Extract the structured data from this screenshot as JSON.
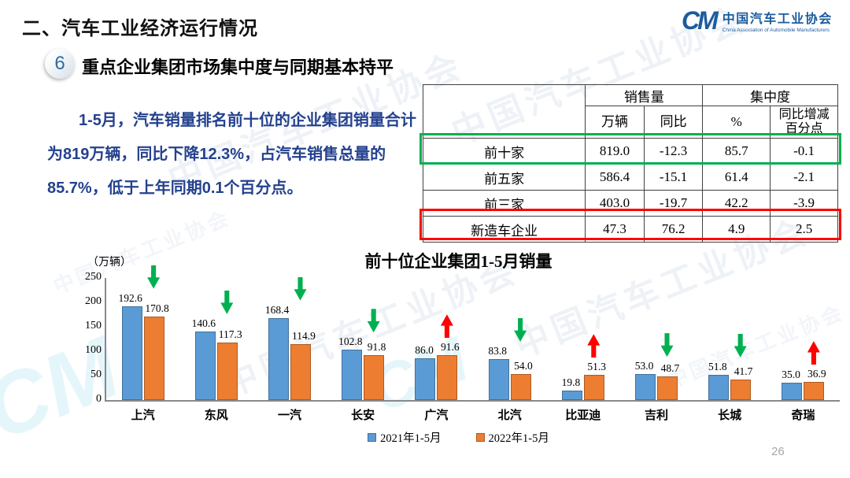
{
  "slide": {
    "section_title": "二、汽车工业经济运行情况",
    "page_number": "26"
  },
  "logo": {
    "monogram": "CM",
    "name_cn": "中国汽车工业协会",
    "name_en": "China Association of Automobile Manufacturers"
  },
  "heading": {
    "badge": "6",
    "text": "重点企业集团市场集中度与同期基本持平"
  },
  "paragraph": {
    "text": "1-5月，汽车销量排名前十位的企业集团销量合计为819万辆，同比下降12.3%，占汽车销售总量的85.7%，低于上年同期0.1个百分点。"
  },
  "table": {
    "group_headers": [
      {
        "label": "销售量",
        "span": 2
      },
      {
        "label": "集中度",
        "span": 2
      }
    ],
    "sub_headers": [
      "万辆",
      "同比",
      "%",
      "同比增减百分点"
    ],
    "rows": [
      {
        "label": "前十家",
        "values": [
          "819.0",
          "-12.3",
          "85.7",
          "-0.1"
        ],
        "highlight": "green"
      },
      {
        "label": "前五家",
        "values": [
          "586.4",
          "-15.1",
          "61.4",
          "-2.1"
        ],
        "highlight": null
      },
      {
        "label": "前三家",
        "values": [
          "403.0",
          "-19.7",
          "42.2",
          "-3.9"
        ],
        "highlight": null
      },
      {
        "label": "新造车企业",
        "values": [
          "47.3",
          "76.2",
          "4.9",
          "2.5"
        ],
        "highlight": "red"
      }
    ],
    "highlight_colors": {
      "green": "#00b050",
      "red": "#fe0000"
    }
  },
  "chart_data": {
    "type": "bar",
    "title": "前十位企业集团1-5月销量",
    "unit_label": "（万辆）",
    "categories": [
      "上汽",
      "东风",
      "一汽",
      "长安",
      "广汽",
      "北汽",
      "比亚迪",
      "吉利",
      "长城",
      "奇瑞"
    ],
    "series": [
      {
        "name": "2021年1-5月",
        "color": "#5b9bd5",
        "border": "#41719c",
        "values": [
          192.6,
          140.6,
          168.4,
          102.8,
          86.0,
          83.8,
          19.8,
          53.0,
          51.8,
          35.0
        ]
      },
      {
        "name": "2022年1-5月",
        "color": "#ed7d31",
        "border": "#ae5a21",
        "values": [
          170.8,
          117.3,
          114.9,
          91.8,
          91.6,
          54.0,
          51.3,
          48.7,
          41.7,
          36.9
        ]
      }
    ],
    "trend_arrows": [
      "down",
      "down",
      "down",
      "down",
      "up",
      "down",
      "up",
      "down",
      "down",
      "up"
    ],
    "arrow_colors": {
      "down": "#00b050",
      "up": "#fe0000"
    },
    "ylim": [
      0,
      250
    ],
    "yticks": [
      0,
      50,
      100,
      150,
      200,
      250
    ],
    "grid": false,
    "legend_position": "bottom"
  },
  "watermark": {
    "monogram": "CM",
    "text": "中国汽车工业协会"
  }
}
